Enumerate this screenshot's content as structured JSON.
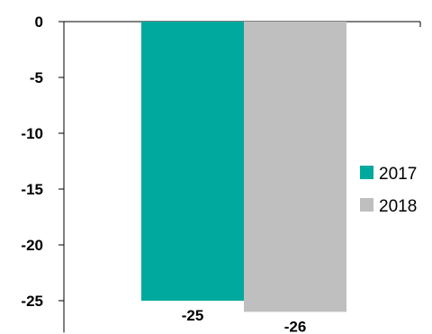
{
  "chart_data": {
    "type": "bar",
    "series": [
      {
        "name": "2017",
        "values": [
          -25
        ],
        "data_labels": [
          "-25"
        ],
        "color": "#00A99D"
      },
      {
        "name": "2018",
        "values": [
          -26
        ],
        "data_labels": [
          "-26"
        ],
        "color": "#BFBFBF"
      }
    ],
    "yticks": [
      0,
      -5,
      -10,
      -15,
      -20,
      -25
    ],
    "ytick_labels": [
      "0",
      "-5",
      "-10",
      "-15",
      "-20",
      "-25"
    ],
    "ylim": [
      -26,
      0
    ],
    "grid": false,
    "legend_position": "right"
  }
}
